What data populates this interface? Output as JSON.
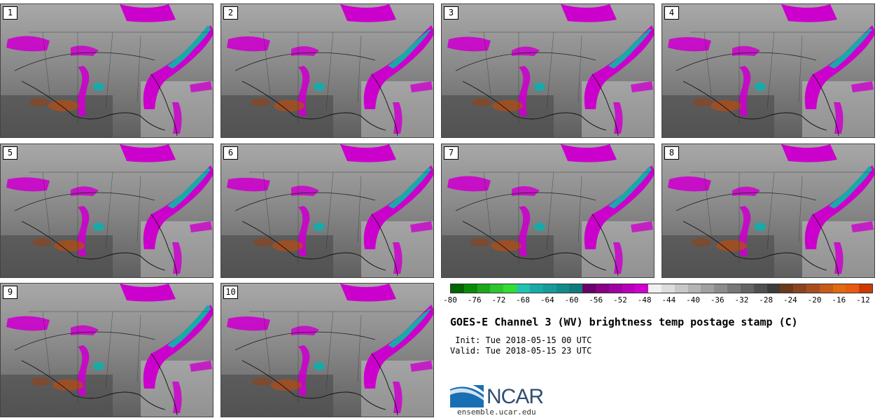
{
  "panels": [
    {
      "label": "1"
    },
    {
      "label": "2"
    },
    {
      "label": "3"
    },
    {
      "label": "4"
    },
    {
      "label": "5"
    },
    {
      "label": "6"
    },
    {
      "label": "7"
    },
    {
      "label": "8"
    },
    {
      "label": "9"
    },
    {
      "label": "10"
    }
  ],
  "colorbar": {
    "colors": [
      "#006400",
      "#0a8a0a",
      "#1aa81a",
      "#2cc62c",
      "#33dd33",
      "#22c4b0",
      "#1aa9a9",
      "#169a9a",
      "#138a8a",
      "#0f7a7a",
      "#6a006a",
      "#880088",
      "#a000a0",
      "#b800b8",
      "#d000d0",
      "#f0f0f0",
      "#dcdcdc",
      "#c8c8c8",
      "#b4b4b4",
      "#a0a0a0",
      "#8c8c8c",
      "#787878",
      "#646464",
      "#505050",
      "#3c3c3c",
      "#6b3a1a",
      "#8a4420",
      "#a84e1c",
      "#c85a18",
      "#e06a10",
      "#e85a10",
      "#cc3a00"
    ],
    "ticks": [
      "-80",
      "-76",
      "-72",
      "-68",
      "-64",
      "-60",
      "-56",
      "-52",
      "-48",
      "-44",
      "-40",
      "-36",
      "-32",
      "-28",
      "-24",
      "-20",
      "-16",
      "-12"
    ]
  },
  "title": "GOES-E Channel 3 (WV) brightness temp postage stamp (C)",
  "init": " Init: Tue 2018-05-15 00 UTC",
  "valid": "Valid: Tue 2018-05-15 23 UTC",
  "logo": {
    "word": "NCAR",
    "site": "ensemble.ucar.edu"
  }
}
